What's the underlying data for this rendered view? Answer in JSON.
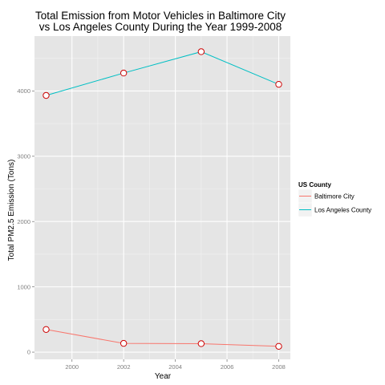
{
  "chart_data": {
    "type": "line",
    "title": "Total Emission from Motor Vehicles in Baltimore City",
    "subtitle": "vs Los Angeles County During the Year 1999-2008",
    "xlabel": "Year",
    "ylabel": "Total PM2.5 Emission (Tons)",
    "x": [
      1999,
      2002,
      2005,
      2008
    ],
    "xlim": [
      1998.55,
      2008.45
    ],
    "ylim": [
      -110,
      4840
    ],
    "x_ticks": [
      2000,
      2002,
      2004,
      2006,
      2008
    ],
    "y_ticks": [
      0,
      1000,
      2000,
      3000,
      4000
    ],
    "grid": true,
    "legend": {
      "title": "US County",
      "position": "right"
    },
    "series": [
      {
        "name": "Baltimore City",
        "values": [
          347,
          134,
          130,
          89
        ],
        "color": "#f8766d"
      },
      {
        "name": "Los Angeles County",
        "values": [
          3931,
          4274,
          4601,
          4101
        ],
        "color": "#00bfc4"
      }
    ],
    "marker_color": "#cc0000",
    "panel_color": "#e5e5e5"
  }
}
